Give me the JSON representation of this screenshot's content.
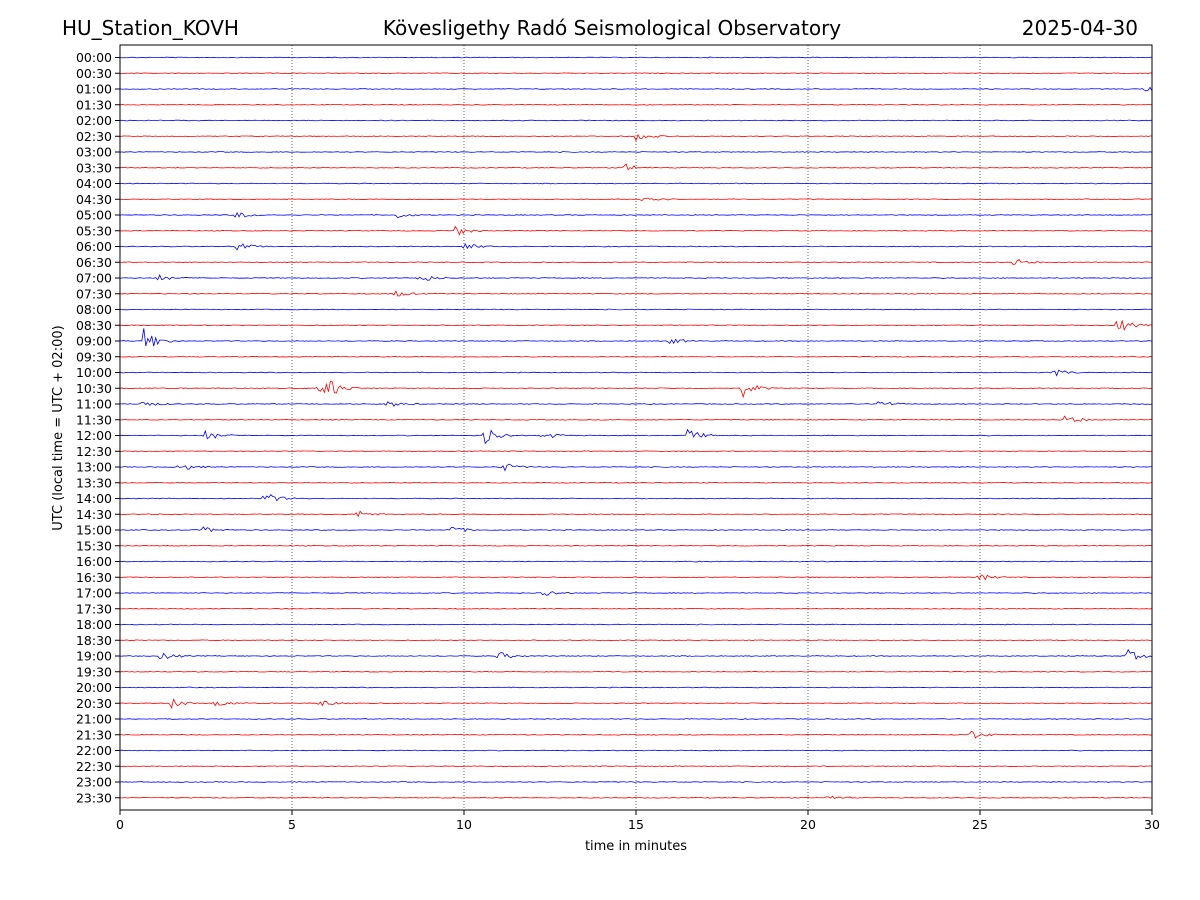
{
  "header": {
    "station": "HU_Station_KOVH",
    "observatory": "Kövesligethy Radó Seismological Observatory",
    "date": "2025-04-30"
  },
  "chart_data": {
    "type": "line",
    "subtype": "helicorder",
    "xlabel": "time in minutes",
    "ylabel": "UTC (local time = UTC + 02:00)",
    "xlim": [
      0,
      30
    ],
    "x_ticks": [
      0,
      5,
      10,
      15,
      20,
      25,
      30
    ],
    "grid": "vertical dotted lines at 5-minute ticks",
    "row_colors": [
      "#0000ff",
      "#ff0000"
    ],
    "rows": [
      {
        "label": "00:00",
        "events": []
      },
      {
        "label": "00:30",
        "events": []
      },
      {
        "label": "01:00",
        "events": [
          {
            "t": 29.8,
            "amp": 0.35
          }
        ]
      },
      {
        "label": "01:30",
        "events": []
      },
      {
        "label": "02:00",
        "events": []
      },
      {
        "label": "02:30",
        "events": [
          {
            "t": 15.0,
            "amp": 0.4
          }
        ]
      },
      {
        "label": "03:00",
        "events": []
      },
      {
        "label": "03:30",
        "events": [
          {
            "t": 14.7,
            "amp": 0.35
          }
        ]
      },
      {
        "label": "04:00",
        "events": []
      },
      {
        "label": "04:30",
        "events": [
          {
            "t": 15.2,
            "amp": 0.4
          }
        ]
      },
      {
        "label": "05:00",
        "events": [
          {
            "t": 3.4,
            "amp": 0.35
          },
          {
            "t": 8.0,
            "amp": 0.35
          }
        ]
      },
      {
        "label": "05:30",
        "events": [
          {
            "t": 9.7,
            "amp": 0.6
          }
        ]
      },
      {
        "label": "06:00",
        "events": [
          {
            "t": 3.4,
            "amp": 0.4
          },
          {
            "t": 10.0,
            "amp": 0.35
          }
        ]
      },
      {
        "label": "06:30",
        "events": [
          {
            "t": 26.0,
            "amp": 0.35
          }
        ]
      },
      {
        "label": "07:00",
        "events": [
          {
            "t": 1.1,
            "amp": 0.3
          },
          {
            "t": 8.7,
            "amp": 0.45
          }
        ]
      },
      {
        "label": "07:30",
        "events": [
          {
            "t": 8.0,
            "amp": 0.3
          }
        ]
      },
      {
        "label": "08:00",
        "events": []
      },
      {
        "label": "08:30",
        "events": [
          {
            "t": 29.0,
            "amp": 0.7
          }
        ]
      },
      {
        "label": "09:00",
        "events": [
          {
            "t": 0.7,
            "amp": 1.3
          },
          {
            "t": 16.0,
            "amp": 0.3
          }
        ]
      },
      {
        "label": "09:30",
        "events": []
      },
      {
        "label": "10:00",
        "events": [
          {
            "t": 27.1,
            "amp": 0.4
          }
        ]
      },
      {
        "label": "10:30",
        "events": [
          {
            "t": 5.8,
            "amp": 0.7
          },
          {
            "t": 6.1,
            "amp": 0.6
          },
          {
            "t": 18.1,
            "amp": 0.8
          }
        ]
      },
      {
        "label": "11:00",
        "events": [
          {
            "t": 0.6,
            "amp": 0.35
          },
          {
            "t": 7.8,
            "amp": 0.3
          },
          {
            "t": 22.0,
            "amp": 0.45
          }
        ]
      },
      {
        "label": "11:30",
        "events": [
          {
            "t": 27.5,
            "amp": 0.5
          }
        ]
      },
      {
        "label": "12:00",
        "events": [
          {
            "t": 2.5,
            "amp": 0.5
          },
          {
            "t": 10.6,
            "amp": 0.9
          },
          {
            "t": 12.3,
            "amp": 0.4
          },
          {
            "t": 16.5,
            "amp": 0.6
          }
        ]
      },
      {
        "label": "12:30",
        "events": []
      },
      {
        "label": "13:00",
        "events": [
          {
            "t": 1.7,
            "amp": 0.45
          },
          {
            "t": 11.1,
            "amp": 0.45
          }
        ]
      },
      {
        "label": "13:30",
        "events": []
      },
      {
        "label": "14:00",
        "events": [
          {
            "t": 4.2,
            "amp": 0.6
          }
        ]
      },
      {
        "label": "14:30",
        "events": [
          {
            "t": 6.9,
            "amp": 0.35
          }
        ]
      },
      {
        "label": "15:00",
        "events": [
          {
            "t": 2.4,
            "amp": 0.3
          },
          {
            "t": 9.6,
            "amp": 0.4
          }
        ]
      },
      {
        "label": "15:30",
        "events": []
      },
      {
        "label": "16:00",
        "events": []
      },
      {
        "label": "16:30",
        "events": [
          {
            "t": 25.0,
            "amp": 0.3
          }
        ]
      },
      {
        "label": "17:00",
        "events": [
          {
            "t": 12.3,
            "amp": 0.35
          }
        ]
      },
      {
        "label": "17:30",
        "events": []
      },
      {
        "label": "18:00",
        "events": []
      },
      {
        "label": "18:30",
        "events": []
      },
      {
        "label": "19:00",
        "events": [
          {
            "t": 1.2,
            "amp": 0.4
          },
          {
            "t": 11.0,
            "amp": 0.4
          },
          {
            "t": 29.3,
            "amp": 0.55
          }
        ]
      },
      {
        "label": "19:30",
        "events": []
      },
      {
        "label": "20:00",
        "events": []
      },
      {
        "label": "20:30",
        "events": [
          {
            "t": 1.5,
            "amp": 0.45
          },
          {
            "t": 2.8,
            "amp": 0.35
          },
          {
            "t": 5.8,
            "amp": 0.35
          }
        ]
      },
      {
        "label": "21:00",
        "events": []
      },
      {
        "label": "21:30",
        "events": [
          {
            "t": 24.7,
            "amp": 0.5
          }
        ]
      },
      {
        "label": "22:00",
        "events": []
      },
      {
        "label": "22:30",
        "events": []
      },
      {
        "label": "23:00",
        "events": []
      },
      {
        "label": "23:30",
        "events": [
          {
            "t": 20.4,
            "amp": 0.35
          }
        ]
      }
    ]
  }
}
